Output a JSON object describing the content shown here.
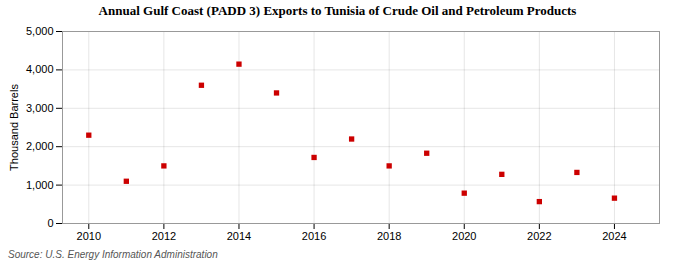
{
  "chart_data": {
    "type": "scatter",
    "title": "Annual Gulf Coast (PADD 3) Exports to Tunisia of Crude Oil and Petroleum Products",
    "ylabel": "Thousand Barrels",
    "caption": "Source: U.S. Energy Information Administration",
    "x": [
      2010,
      2011,
      2012,
      2013,
      2014,
      2015,
      2016,
      2017,
      2018,
      2019,
      2020,
      2021,
      2022,
      2023,
      2024
    ],
    "values": [
      2300,
      1100,
      1500,
      3600,
      4150,
      3400,
      1720,
      2200,
      1500,
      1830,
      790,
      1280,
      570,
      1330,
      660
    ],
    "color": "#cc0000",
    "marker": "square",
    "xlim": [
      2009.3,
      2025.2
    ],
    "ylim": [
      0,
      5000
    ],
    "xticks": [
      2010,
      2012,
      2014,
      2016,
      2018,
      2020,
      2022,
      2024
    ],
    "yticks": [
      0,
      {
        "value": 1000,
        "label": "1,000"
      },
      {
        "value": 2000,
        "label": "2,000"
      },
      {
        "value": 3000,
        "label": "3,000"
      },
      {
        "value": 4000,
        "label": "4,000"
      },
      {
        "value": 5000,
        "label": "5,000"
      }
    ],
    "grid": true
  }
}
